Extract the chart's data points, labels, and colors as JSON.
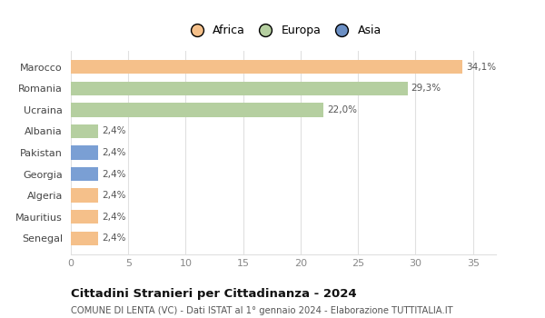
{
  "categories": [
    "Senegal",
    "Mauritius",
    "Algeria",
    "Georgia",
    "Pakistan",
    "Albania",
    "Ucraina",
    "Romania",
    "Marocco"
  ],
  "values": [
    2.4,
    2.4,
    2.4,
    2.4,
    2.4,
    2.4,
    22.0,
    29.3,
    34.1
  ],
  "colors": [
    "#f5c08a",
    "#f5c08a",
    "#f5c08a",
    "#7a9fd4",
    "#7a9fd4",
    "#b5cfa0",
    "#b5cfa0",
    "#b5cfa0",
    "#f5c08a"
  ],
  "labels": [
    "2,4%",
    "2,4%",
    "2,4%",
    "2,4%",
    "2,4%",
    "2,4%",
    "22,0%",
    "29,3%",
    "34,1%"
  ],
  "legend": [
    {
      "label": "Africa",
      "color": "#f5c08a"
    },
    {
      "label": "Europa",
      "color": "#b5cfa0"
    },
    {
      "label": "Asia",
      "color": "#6b8fc4"
    }
  ],
  "xlim": [
    0,
    37
  ],
  "xticks": [
    0,
    5,
    10,
    15,
    20,
    25,
    30,
    35
  ],
  "title": "Cittadini Stranieri per Cittadinanza - 2024",
  "subtitle": "COMUNE DI LENTA (VC) - Dati ISTAT al 1° gennaio 2024 - Elaborazione TUTTITALIA.IT",
  "background_color": "#ffffff",
  "grid_color": "#e0e0e0"
}
